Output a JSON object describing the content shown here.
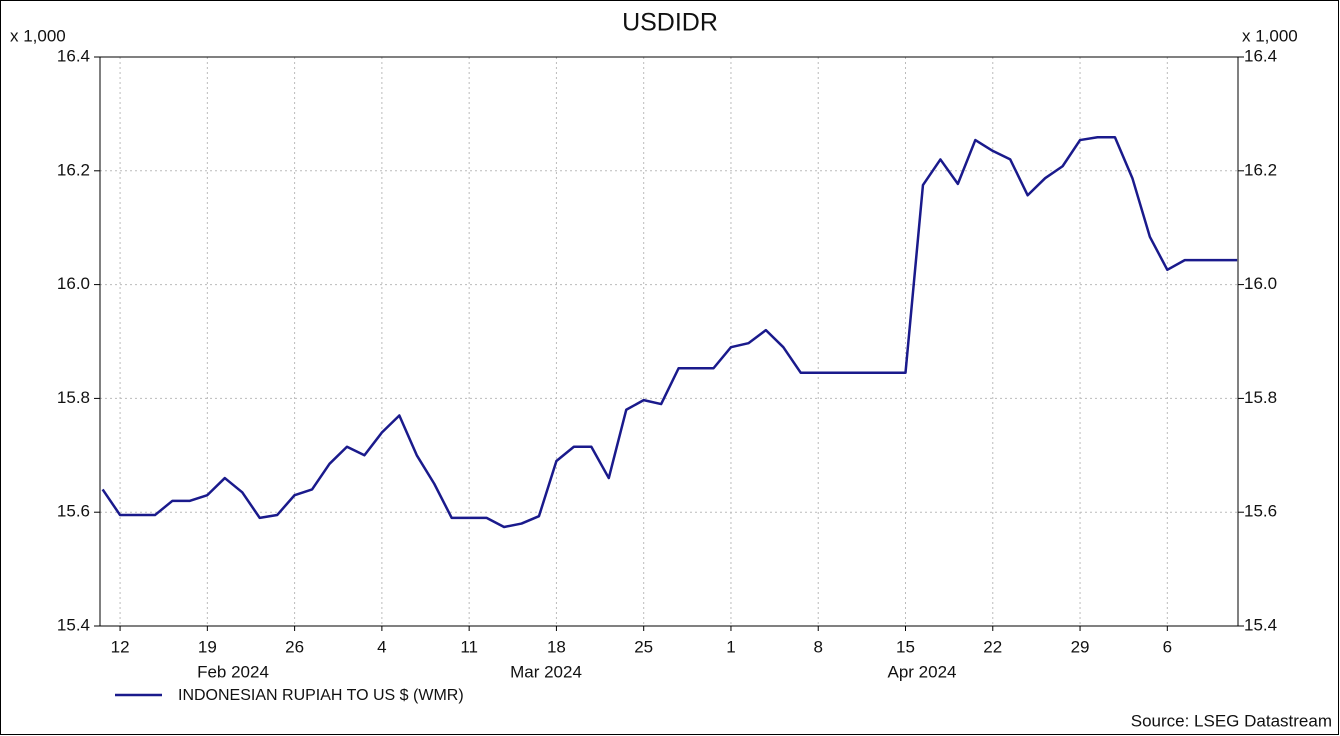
{
  "chart_data": {
    "type": "line",
    "title": "USDIDR",
    "y_unit_label": "x 1,000",
    "categories": [
      null,
      "12",
      null,
      null,
      null,
      null,
      "19",
      null,
      null,
      null,
      null,
      "26",
      null,
      null,
      null,
      null,
      "4",
      null,
      null,
      null,
      null,
      "11",
      null,
      null,
      null,
      null,
      "18",
      null,
      null,
      null,
      null,
      "25",
      null,
      null,
      null,
      null,
      "1",
      null,
      null,
      null,
      null,
      "8",
      null,
      null,
      null,
      null,
      "15",
      null,
      null,
      null,
      null,
      "22",
      null,
      null,
      null,
      null,
      "29",
      null,
      null,
      null,
      null,
      "6",
      null,
      null,
      null,
      null
    ],
    "month_labels": [
      "Feb 2024",
      "Mar 2024",
      "Apr 2024"
    ],
    "series": [
      {
        "name": "INDONESIAN RUPIAH TO US $ (WMR)",
        "color": "#1a1a8c",
        "values": [
          15.64,
          15.595,
          15.595,
          15.595,
          15.62,
          15.62,
          15.63,
          15.66,
          15.635,
          15.59,
          15.595,
          15.63,
          15.64,
          15.685,
          15.715,
          15.7,
          15.74,
          15.77,
          15.7,
          15.65,
          15.59,
          15.59,
          15.59,
          15.574,
          15.58,
          15.593,
          15.69,
          15.715,
          15.715,
          15.66,
          15.78,
          15.797,
          15.79,
          15.853,
          15.853,
          15.853,
          15.89,
          15.897,
          15.92,
          15.89,
          15.845,
          15.845,
          15.845,
          15.845,
          15.845,
          15.845,
          15.845,
          16.175,
          16.22,
          16.177,
          16.254,
          16.235,
          16.22,
          16.157,
          16.187,
          16.208,
          16.254,
          16.259,
          16.259,
          16.187,
          16.084,
          16.026,
          16.043,
          16.043,
          16.043,
          16.043
        ]
      }
    ],
    "ylim": [
      15.4,
      16.4
    ],
    "yticks": [
      15.4,
      15.6,
      15.8,
      {
        "value": 16,
        "label": "16.0"
      },
      16.2,
      16.4
    ],
    "grid": true,
    "source": "Source: LSEG Datastream"
  }
}
